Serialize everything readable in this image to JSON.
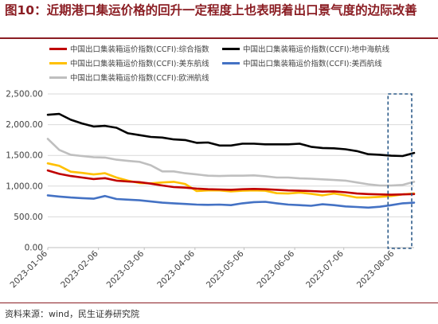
{
  "figure": {
    "title": "图10：近期港口集运价格的回升一定程度上也表明着出口景气度的边际改善",
    "source": "资料来源：wind，民生证券研究院"
  },
  "colors": {
    "composite": "#c00000",
    "mediterranean": "#000000",
    "us_east": "#ffc000",
    "europe": "#bfbfbf",
    "us_west": "#4472c4",
    "title": "#8b1e24",
    "highlight_box": "#2e5c8a"
  },
  "chart_data": {
    "type": "line",
    "title": "",
    "xlabel": "",
    "ylabel": "",
    "ylim": [
      0,
      2500
    ],
    "yticks": [
      "0.00",
      "500.00",
      "1,000.00",
      "1,500.00",
      "2,000.00",
      "2,500.00"
    ],
    "xticks": [
      "2023-01-06",
      "2023-02-06",
      "2023-03-06",
      "2023-04-06",
      "2023-05-06",
      "2023-06-06",
      "2023-07-06",
      "2023-08-06"
    ],
    "x": [
      "2023-01-06",
      "2023-01-13",
      "2023-01-20",
      "2023-01-27",
      "2023-02-03",
      "2023-02-10",
      "2023-02-17",
      "2023-02-24",
      "2023-03-03",
      "2023-03-10",
      "2023-03-17",
      "2023-03-24",
      "2023-03-31",
      "2023-04-07",
      "2023-04-14",
      "2023-04-21",
      "2023-04-28",
      "2023-05-05",
      "2023-05-12",
      "2023-05-19",
      "2023-05-26",
      "2023-06-02",
      "2023-06-09",
      "2023-06-16",
      "2023-06-23",
      "2023-06-30",
      "2023-07-07",
      "2023-07-14",
      "2023-07-21",
      "2023-07-28",
      "2023-08-04",
      "2023-08-11",
      "2023-08-18"
    ],
    "legend_position": "top",
    "highlight_range": [
      "2023-08-04",
      "2023-08-18"
    ],
    "series": [
      {
        "name": "中国出口集装箱运价指数(CCFI):综合指数",
        "color_key": "composite",
        "values": [
          1255,
          1200,
          1165,
          1140,
          1115,
          1130,
          1090,
          1075,
          1065,
          1040,
          1010,
          985,
          975,
          960,
          950,
          945,
          940,
          950,
          955,
          950,
          940,
          930,
          925,
          920,
          910,
          915,
          900,
          880,
          870,
          865,
          860,
          865,
          870
        ]
      },
      {
        "name": "中国出口集装箱运价指数(CCFI):地中海航线",
        "color_key": "mediterranean",
        "values": [
          2160,
          2175,
          2080,
          2020,
          1970,
          1980,
          1950,
          1860,
          1830,
          1800,
          1790,
          1760,
          1750,
          1705,
          1710,
          1660,
          1660,
          1690,
          1690,
          1680,
          1680,
          1680,
          1690,
          1640,
          1620,
          1615,
          1600,
          1570,
          1520,
          1510,
          1495,
          1490,
          1540
        ]
      },
      {
        "name": "中国出口集装箱运价指数(CCFI):美东航线",
        "color_key": "us_east",
        "values": [
          1370,
          1330,
          1235,
          1215,
          1190,
          1210,
          1140,
          1090,
          1050,
          1045,
          1060,
          1070,
          1035,
          920,
          930,
          930,
          915,
          925,
          930,
          925,
          885,
          880,
          895,
          875,
          850,
          880,
          850,
          815,
          815,
          825,
          840,
          865,
          880
        ]
      },
      {
        "name": "中国出口集装箱运价指数(CCFI):欧洲航线",
        "color_key": "europe",
        "values": [
          1770,
          1590,
          1510,
          1490,
          1470,
          1465,
          1430,
          1410,
          1395,
          1340,
          1240,
          1240,
          1210,
          1190,
          1170,
          1165,
          1170,
          1170,
          1175,
          1160,
          1140,
          1140,
          1125,
          1120,
          1110,
          1100,
          1090,
          1060,
          1030,
          1010,
          1010,
          1020,
          1070
        ]
      },
      {
        "name": "中国出口集装箱运价指数(CCFI):美西航线",
        "color_key": "us_west",
        "values": [
          850,
          830,
          815,
          805,
          795,
          840,
          790,
          780,
          770,
          750,
          730,
          720,
          710,
          700,
          695,
          700,
          690,
          720,
          740,
          745,
          720,
          700,
          690,
          680,
          705,
          690,
          670,
          660,
          650,
          665,
          690,
          720,
          730
        ]
      }
    ]
  }
}
